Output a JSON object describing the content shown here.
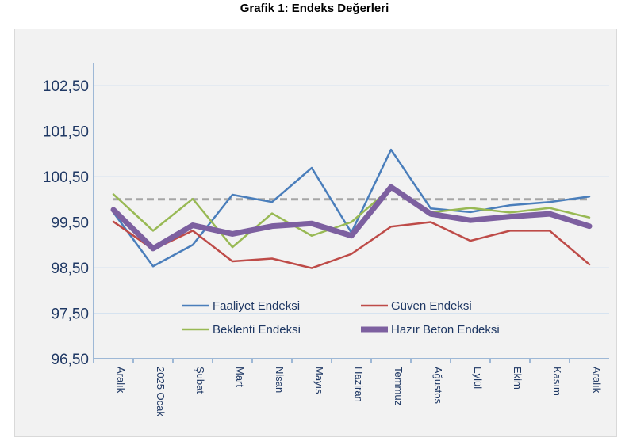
{
  "chart_data": {
    "type": "line",
    "title": "Grafik 1: Endeks Değerleri",
    "categories": [
      "Aralık",
      "2025 Ocak",
      "Şubat",
      "Mart",
      "Nisan",
      "Mayıs",
      "Haziran",
      "Temmuz",
      "Ağustos",
      "Eylül",
      "Ekim",
      "Kasım",
      "Aralık"
    ],
    "ylim": [
      96.5,
      102.5
    ],
    "yticks": [
      "96,50",
      "97,50",
      "98,50",
      "99,50",
      "100,50",
      "101,50",
      "102,50"
    ],
    "reference_line": 100,
    "grid": true,
    "legend_placement": "bottom-inside",
    "series": [
      {
        "name": "Faaliyet Endeksi",
        "color": "#4a7ebb",
        "values": [
          99.71,
          98.53,
          99.0,
          100.1,
          99.94,
          100.69,
          99.27,
          101.09,
          99.8,
          99.72,
          99.87,
          99.94,
          100.06
        ]
      },
      {
        "name": "Güven Endeksi",
        "color": "#be4b48",
        "values": [
          99.51,
          98.9,
          99.31,
          98.64,
          98.7,
          98.49,
          98.8,
          99.4,
          99.5,
          99.09,
          99.31,
          99.31,
          98.57
        ]
      },
      {
        "name": "Beklenti Endeksi",
        "color": "#98b954",
        "values": [
          100.11,
          99.31,
          100.01,
          98.95,
          99.69,
          99.2,
          99.5,
          100.25,
          99.71,
          99.81,
          99.71,
          99.81,
          99.6
        ]
      },
      {
        "name": "Hazır Beton Endeksi",
        "color": "#7d60a0",
        "values": [
          99.77,
          98.92,
          99.43,
          99.24,
          99.41,
          99.47,
          99.2,
          100.27,
          99.68,
          99.54,
          99.62,
          99.68,
          99.41
        ]
      }
    ]
  }
}
